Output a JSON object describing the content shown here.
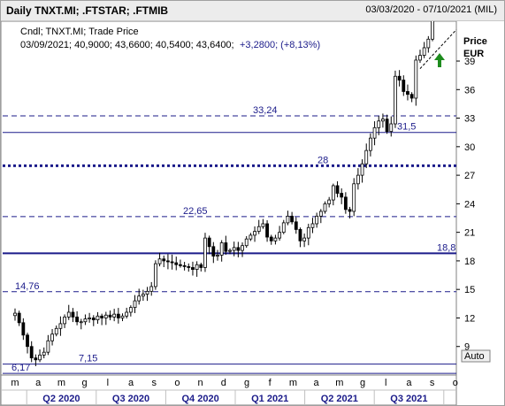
{
  "window": {
    "title": "Daily TNXT.MI; .FTSTAR; .FTMIB",
    "date_range": "03/03/2020 - 07/10/2021 (MIL)"
  },
  "legend": {
    "line1": "Cndl; TNXT.MI; Trade Price",
    "line2_values": "03/09/2021; 40,9000; 43,6600; 40,5400; 43,6400;",
    "line2_change": "+3,2800; (+8,13%)"
  },
  "axis": {
    "price_label": "Price",
    "currency_label": "EUR",
    "auto_button": "Auto"
  },
  "colors": {
    "hline_blue": "#1b1b8a",
    "candle": "#000000",
    "arrow": "#1e8c1e",
    "quarter_text": "#1b1b8a",
    "change_text": "#1b1b8a"
  },
  "chart_data": {
    "type": "candlestick",
    "ylim": [
      6,
      43
    ],
    "y_ticks": [
      "9",
      "12",
      "15",
      "18",
      "21",
      "24",
      "27",
      "30",
      "33",
      "36",
      "39"
    ],
    "x_month_ticks": [
      "m",
      "a",
      "m",
      "g",
      "l",
      "a",
      "s",
      "o",
      "n",
      "d",
      "g",
      "f",
      "m",
      "a",
      "m",
      "g",
      "l",
      "a",
      "s",
      "o"
    ],
    "x_quarter_ticks": [
      "Q2 2020",
      "Q3 2020",
      "Q4 2020",
      "Q1 2021",
      "Q2 2021",
      "Q3 2021"
    ],
    "series_close": [
      12.5,
      11.5,
      10.2,
      9.0,
      7.8,
      7.6,
      8.1,
      8.4,
      9.6,
      10.3,
      10.9,
      11.4,
      12.1,
      12.6,
      12.1,
      11.6,
      11.6,
      11.9,
      12.0,
      11.8,
      12.2,
      12.0,
      12.3,
      12.1,
      12.4,
      12.0,
      12.2,
      12.6,
      13.1,
      13.8,
      14.3,
      14.5,
      14.8,
      15.3,
      17.7,
      18.2,
      18.0,
      17.9,
      17.8,
      17.6,
      17.5,
      17.4,
      17.3,
      17.1,
      17.6,
      17.3,
      20.4,
      19.5,
      18.5,
      18.6,
      19.9,
      19.0,
      19.1,
      19.4,
      19.1,
      19.6,
      20.3,
      20.7,
      21.1,
      21.6,
      21.9,
      20.5,
      20.1,
      20.4,
      21.0,
      22.0,
      22.7,
      22.1,
      21.3,
      20.1,
      20.4,
      21.5,
      21.9,
      22.7,
      23.2,
      24.0,
      24.4,
      25.9,
      25.1,
      24.7,
      23.4,
      23.2,
      26.1,
      27.0,
      28.2,
      29.6,
      30.9,
      32.0,
      32.7,
      32.9,
      31.6,
      32.4,
      37.4,
      37.0,
      35.8,
      35.5,
      35.1,
      39.1,
      39.6,
      40.4,
      41.3,
      43.64
    ],
    "hlines": [
      {
        "value": 33.24,
        "label": "33,24",
        "style": "dashed"
      },
      {
        "value": 31.5,
        "label": "31,5",
        "style": "solid"
      },
      {
        "value": 28,
        "label": "28",
        "style": "dotted-bold"
      },
      {
        "value": 22.65,
        "label": "22,65",
        "style": "dashed"
      },
      {
        "value": 18.8,
        "label": "18,8",
        "style": "solid-bold"
      },
      {
        "value": 14.76,
        "label": "14,76",
        "style": "dashed"
      },
      {
        "value": 7.15,
        "label": "7,15",
        "style": "solid"
      },
      {
        "value": 6.17,
        "label": "6,17",
        "style": "solid"
      }
    ],
    "trendline": [
      {
        "x": 0.92,
        "y": 38.2
      },
      {
        "x": 1.0,
        "y": 42.3
      }
    ]
  }
}
